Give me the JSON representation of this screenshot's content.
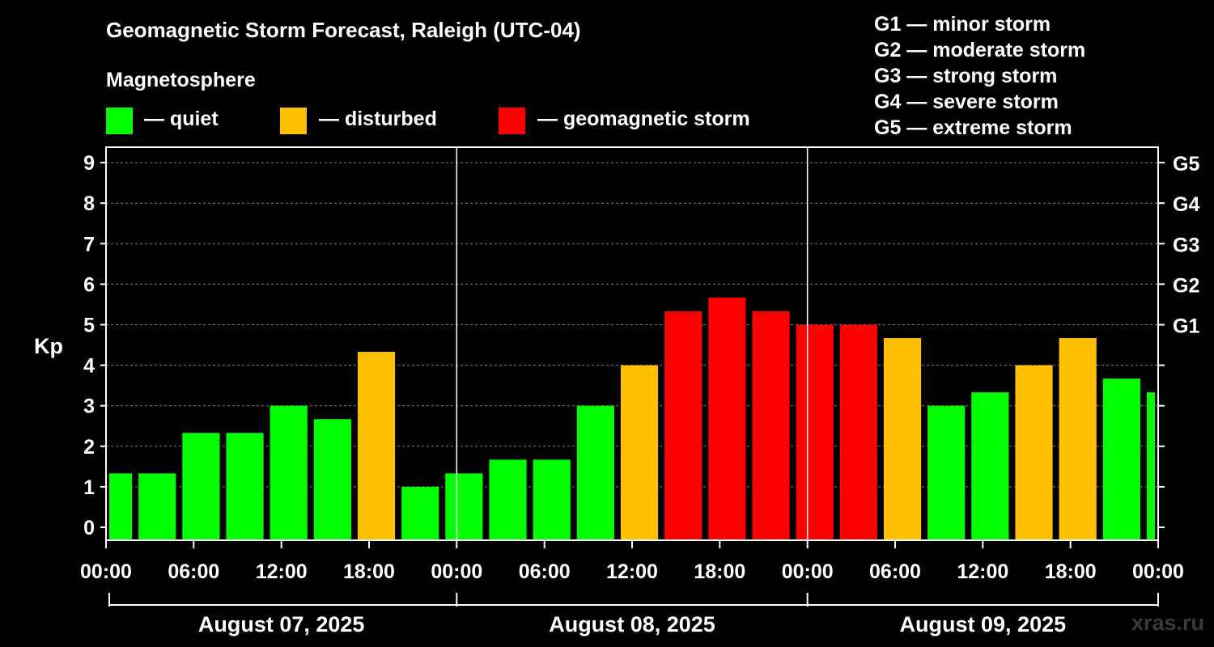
{
  "header": {
    "title": "Geomagnetic Storm Forecast, Raleigh (UTC-04)",
    "subtitle": "Magnetosphere"
  },
  "legend": [
    {
      "label": "— quiet",
      "color": "#00ff00"
    },
    {
      "label": "— disturbed",
      "color": "#ffc000"
    },
    {
      "label": "— geomagnetic storm",
      "color": "#ff0000"
    }
  ],
  "storm_scale": [
    "G1 — minor storm",
    "G2 — moderate storm",
    "G3 — strong storm",
    "G4 — severe storm",
    "G5 — extreme storm"
  ],
  "watermark": "xras.ru",
  "colors": {
    "quiet": "#00ff00",
    "disturbed": "#ffc000",
    "storm": "#ff0000",
    "grid": "#808080",
    "axis": "#ffffff"
  },
  "chart_data": {
    "type": "bar",
    "title": "Geomagnetic Storm Forecast, Raleigh (UTC-04)",
    "ylabel": "Kp",
    "ylim": [
      0,
      9
    ],
    "yticks": [
      "0",
      "1",
      "2",
      "3",
      "4",
      "5",
      "6",
      "7",
      "8",
      "9"
    ],
    "g_levels": [
      {
        "label": "G1",
        "kp": 5
      },
      {
        "label": "G2",
        "kp": 6
      },
      {
        "label": "G3",
        "kp": 7
      },
      {
        "label": "G4",
        "kp": 8
      },
      {
        "label": "G5",
        "kp": 9
      }
    ],
    "x_range_hours": [
      0,
      72
    ],
    "xticks": [
      {
        "hour": 0,
        "label": "00:00"
      },
      {
        "hour": 6,
        "label": "06:00"
      },
      {
        "hour": 12,
        "label": "12:00"
      },
      {
        "hour": 18,
        "label": "18:00"
      },
      {
        "hour": 24,
        "label": "00:00"
      },
      {
        "hour": 30,
        "label": "06:00"
      },
      {
        "hour": 36,
        "label": "12:00"
      },
      {
        "hour": 42,
        "label": "18:00"
      },
      {
        "hour": 48,
        "label": "00:00"
      },
      {
        "hour": 54,
        "label": "06:00"
      },
      {
        "hour": 60,
        "label": "12:00"
      },
      {
        "hour": 66,
        "label": "18:00"
      },
      {
        "hour": 72,
        "label": "00:00"
      }
    ],
    "days": [
      {
        "label": "August 07, 2025",
        "start_hour": 0,
        "end_hour": 24
      },
      {
        "label": "August 08, 2025",
        "start_hour": 24,
        "end_hour": 48
      },
      {
        "label": "August 09, 2025",
        "start_hour": 48,
        "end_hour": 72
      }
    ],
    "bars": [
      {
        "start": 0,
        "end": 2,
        "kp": 1.33,
        "level": "quiet"
      },
      {
        "start": 2,
        "end": 5,
        "kp": 1.33,
        "level": "quiet"
      },
      {
        "start": 5,
        "end": 8,
        "kp": 2.33,
        "level": "quiet"
      },
      {
        "start": 8,
        "end": 11,
        "kp": 2.33,
        "level": "quiet"
      },
      {
        "start": 11,
        "end": 14,
        "kp": 3.0,
        "level": "quiet"
      },
      {
        "start": 14,
        "end": 17,
        "kp": 2.67,
        "level": "quiet"
      },
      {
        "start": 17,
        "end": 20,
        "kp": 4.33,
        "level": "disturbed"
      },
      {
        "start": 20,
        "end": 23,
        "kp": 1.0,
        "level": "quiet"
      },
      {
        "start": 23,
        "end": 26,
        "kp": 1.33,
        "level": "quiet"
      },
      {
        "start": 26,
        "end": 29,
        "kp": 1.67,
        "level": "quiet"
      },
      {
        "start": 29,
        "end": 32,
        "kp": 1.67,
        "level": "quiet"
      },
      {
        "start": 32,
        "end": 35,
        "kp": 3.0,
        "level": "quiet"
      },
      {
        "start": 35,
        "end": 38,
        "kp": 4.0,
        "level": "disturbed"
      },
      {
        "start": 38,
        "end": 41,
        "kp": 5.33,
        "level": "storm"
      },
      {
        "start": 41,
        "end": 44,
        "kp": 5.67,
        "level": "storm"
      },
      {
        "start": 44,
        "end": 47,
        "kp": 5.33,
        "level": "storm"
      },
      {
        "start": 47,
        "end": 50,
        "kp": 5.0,
        "level": "storm"
      },
      {
        "start": 50,
        "end": 53,
        "kp": 5.0,
        "level": "storm"
      },
      {
        "start": 53,
        "end": 56,
        "kp": 4.67,
        "level": "disturbed"
      },
      {
        "start": 56,
        "end": 59,
        "kp": 3.0,
        "level": "quiet"
      },
      {
        "start": 59,
        "end": 62,
        "kp": 3.33,
        "level": "quiet"
      },
      {
        "start": 62,
        "end": 65,
        "kp": 4.0,
        "level": "disturbed"
      },
      {
        "start": 65,
        "end": 68,
        "kp": 4.67,
        "level": "disturbed"
      },
      {
        "start": 68,
        "end": 71,
        "kp": 3.67,
        "level": "quiet"
      },
      {
        "start": 71,
        "end": 72,
        "kp": 3.33,
        "level": "quiet"
      }
    ]
  }
}
